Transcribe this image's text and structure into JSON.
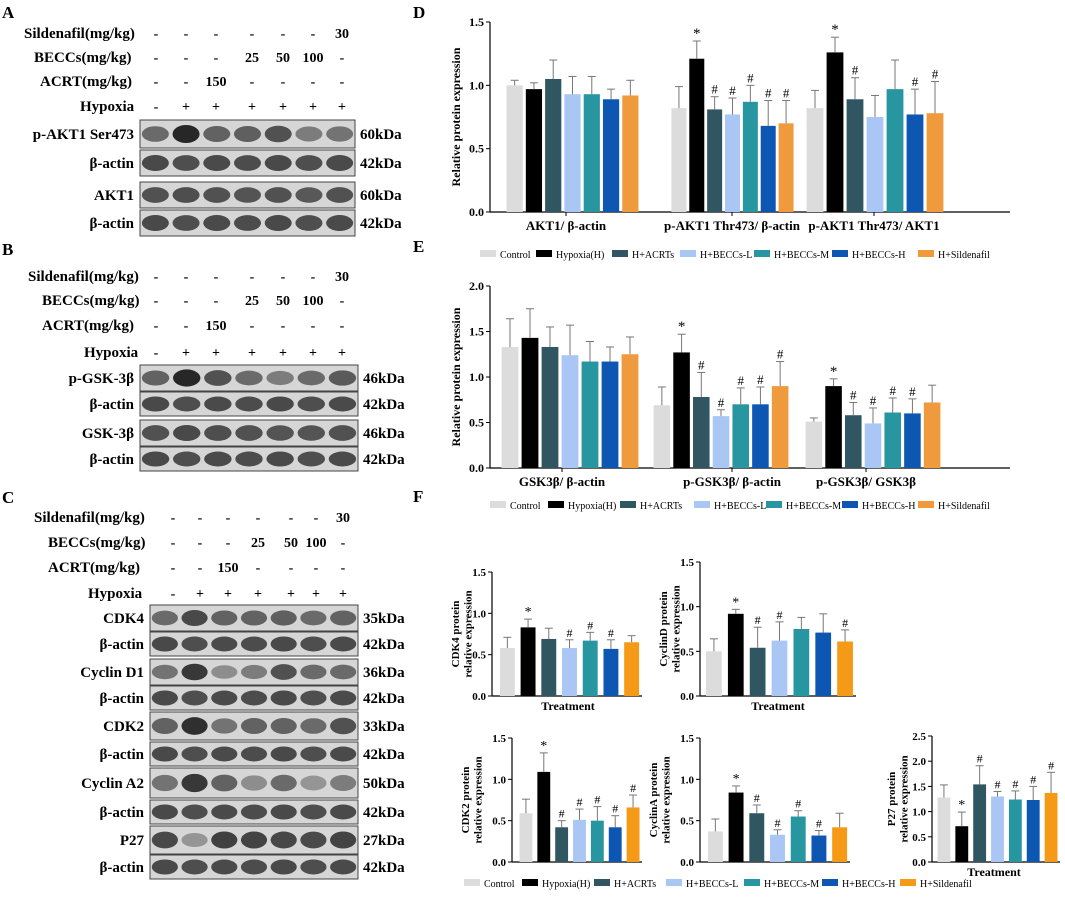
{
  "colors": {
    "Control": "#dcdcdc",
    "Hypoxia(H)": "#000000",
    "H+ACRTs": "#2f5661",
    "H+BECCs-L": "#a9c6f4",
    "H+BECCs-M": "#2896a0",
    "H+BECCs-H": "#0d57b3",
    "H+Sildenafil": "#ef9a3c",
    "Control_F": "#dcdcdc",
    "H+Sildenafil_F": "#f59a16"
  },
  "panels": [
    {
      "letter": "A"
    },
    {
      "letter": "B"
    },
    {
      "letter": "C"
    },
    {
      "letter": "D"
    },
    {
      "letter": "E"
    },
    {
      "letter": "F"
    }
  ],
  "blots": [
    {
      "conditions": [
        {
          "label": "Sildenafil(mg/kg)",
          "values": [
            "-",
            "-",
            "-",
            "-",
            "-",
            "-",
            "30"
          ]
        },
        {
          "label": "BECCs(mg/kg)",
          "values": [
            "-",
            "-",
            "-",
            "25",
            "50",
            "100",
            "-"
          ]
        },
        {
          "label": "ACRT(mg/kg)",
          "values": [
            "-",
            "-",
            "150",
            "-",
            "-",
            "-",
            "-"
          ]
        },
        {
          "label": "Hypoxia",
          "values": [
            "-",
            "+",
            "+",
            "+",
            "+",
            "+",
            "+"
          ]
        }
      ],
      "rows": [
        {
          "protein": "p-AKT1 Ser473",
          "size": "60kDa"
        },
        {
          "protein": "β-actin",
          "size": "42kDa"
        },
        {
          "protein": "AKT1",
          "size": "60kDa"
        },
        {
          "protein": "β-actin",
          "size": "42kDa"
        }
      ]
    },
    {
      "conditions": [
        {
          "label": "Sildenafil(mg/kg)",
          "values": [
            "-",
            "-",
            "-",
            "-",
            "-",
            "-",
            "30"
          ]
        },
        {
          "label": "BECCs(mg/kg)",
          "values": [
            "-",
            "-",
            "-",
            "25",
            "50",
            "100",
            "-"
          ]
        },
        {
          "label": "ACRT(mg/kg)",
          "values": [
            "-",
            "-",
            "150",
            "-",
            "-",
            "-",
            "-"
          ]
        },
        {
          "label": "Hypoxia",
          "values": [
            "-",
            "+",
            "+",
            "+",
            "+",
            "+",
            "+"
          ]
        }
      ],
      "rows": [
        {
          "protein": "p-GSK-3β",
          "size": "46kDa"
        },
        {
          "protein": "β-actin",
          "size": "42kDa"
        },
        {
          "protein": "GSK-3β",
          "size": "46kDa"
        },
        {
          "protein": "β-actin",
          "size": "42kDa"
        }
      ]
    },
    {
      "conditions": [
        {
          "label": "Sildenafil(mg/kg)",
          "values": [
            "-",
            "-",
            "-",
            "-",
            "-",
            "-",
            "30"
          ]
        },
        {
          "label": "BECCs(mg/kg)",
          "values": [
            "-",
            "-",
            "-",
            "25",
            "50",
            "100",
            "-"
          ]
        },
        {
          "label": "ACRT(mg/kg)",
          "values": [
            "-",
            "-",
            "150",
            "-",
            "-",
            "-",
            "-"
          ]
        },
        {
          "label": "Hypoxia",
          "values": [
            "-",
            "+",
            "+",
            "+",
            "+",
            "+",
            "+"
          ]
        }
      ],
      "rows": [
        {
          "protein": "CDK4",
          "size": "35kDa"
        },
        {
          "protein": "β-actin",
          "size": "42kDa"
        },
        {
          "protein": "Cyclin D1",
          "size": "36kDa"
        },
        {
          "protein": "β-actin",
          "size": "42kDa"
        },
        {
          "protein": "CDK2",
          "size": "33kDa"
        },
        {
          "protein": "β-actin",
          "size": "42kDa"
        },
        {
          "protein": "Cyclin A2",
          "size": "50kDa"
        },
        {
          "protein": "β-actin",
          "size": "42kDa"
        },
        {
          "protein": "P27",
          "size": "27kDa"
        },
        {
          "protein": "β-actin",
          "size": "42kDa"
        }
      ]
    }
  ],
  "legend": {
    "entries": [
      "Control",
      "Hypoxia(H)",
      "H+ACRTs",
      "H+BECCs-L",
      "H+BECCs-M",
      "H+BECCs-H",
      "H+Sildenafil"
    ]
  },
  "chart_data": [
    {
      "panel": "D",
      "type": "bar",
      "ylabel": "Relative protein expression",
      "ylim": [
        0,
        1.5
      ],
      "yticks": [
        "0.0",
        "0.5",
        "1.0",
        "1.5"
      ],
      "categories": [
        "AKT1/ β-actin",
        "p-AKT1 Thr473/ β-actin",
        "p-AKT1 Thr473/ AKT1"
      ],
      "series": [
        {
          "name": "Control",
          "values": [
            1.0,
            0.82,
            0.82
          ],
          "errors": [
            0.04,
            0.17,
            0.14
          ]
        },
        {
          "name": "Hypoxia(H)",
          "values": [
            0.97,
            1.21,
            1.26
          ],
          "errors": [
            0.05,
            0.14,
            0.12
          ]
        },
        {
          "name": "H+ACRTs",
          "values": [
            1.05,
            0.81,
            0.89
          ],
          "errors": [
            0.15,
            0.1,
            0.17
          ]
        },
        {
          "name": "H+BECCs-L",
          "values": [
            0.93,
            0.77,
            0.75
          ],
          "errors": [
            0.14,
            0.13,
            0.17
          ]
        },
        {
          "name": "H+BECCs-M",
          "values": [
            0.93,
            0.87,
            0.97
          ],
          "errors": [
            0.14,
            0.13,
            0.23
          ]
        },
        {
          "name": "H+BECCs-H",
          "values": [
            0.89,
            0.68,
            0.77
          ],
          "errors": [
            0.08,
            0.2,
            0.2
          ]
        },
        {
          "name": "H+Sildenafil",
          "values": [
            0.92,
            0.7,
            0.78
          ],
          "errors": [
            0.12,
            0.18,
            0.25
          ]
        }
      ],
      "marks": [
        [
          "",
          "",
          ""
        ],
        [
          "",
          "★",
          "★"
        ],
        [
          "",
          "#",
          "#"
        ],
        [
          "",
          "#",
          ""
        ],
        [
          "",
          "#",
          ""
        ],
        [
          "",
          "#",
          "#"
        ],
        [
          "",
          "#",
          "#"
        ]
      ]
    },
    {
      "panel": "E",
      "type": "bar",
      "ylabel": "Relative protein expression",
      "ylim": [
        0,
        2.0
      ],
      "yticks": [
        "0.0",
        "0.5",
        "1.0",
        "1.5",
        "2.0"
      ],
      "categories": [
        "GSK3β/ β-actin",
        "p-GSK3β/ β-actin",
        "p-GSK3β/ GSK3β"
      ],
      "series": [
        {
          "name": "Control",
          "values": [
            1.33,
            0.69,
            0.51
          ],
          "errors": [
            0.31,
            0.2,
            0.04
          ]
        },
        {
          "name": "Hypoxia(H)",
          "values": [
            1.43,
            1.27,
            0.9
          ],
          "errors": [
            0.32,
            0.2,
            0.08
          ]
        },
        {
          "name": "H+ACRTs",
          "values": [
            1.33,
            0.78,
            0.58
          ],
          "errors": [
            0.22,
            0.27,
            0.14
          ]
        },
        {
          "name": "H+BECCs-L",
          "values": [
            1.24,
            0.57,
            0.49
          ],
          "errors": [
            0.33,
            0.07,
            0.17
          ]
        },
        {
          "name": "H+BECCs-M",
          "values": [
            1.17,
            0.7,
            0.61
          ],
          "errors": [
            0.22,
            0.18,
            0.16
          ]
        },
        {
          "name": "H+BECCs-H",
          "values": [
            1.17,
            0.7,
            0.6
          ],
          "errors": [
            0.16,
            0.19,
            0.16
          ]
        },
        {
          "name": "H+Sildenafil",
          "values": [
            1.25,
            0.9,
            0.72
          ],
          "errors": [
            0.19,
            0.27,
            0.19
          ]
        }
      ],
      "marks": [
        [
          "",
          "",
          ""
        ],
        [
          "",
          "★",
          "★"
        ],
        [
          "",
          "#",
          "#"
        ],
        [
          "",
          "#",
          "#"
        ],
        [
          "",
          "#",
          "#"
        ],
        [
          "",
          "#",
          "#"
        ],
        [
          "",
          "#",
          ""
        ]
      ]
    },
    {
      "panel": "F1",
      "type": "bar",
      "ylabel": "CDK4 protein relative expression",
      "xlabel": "Treatment",
      "ylim": [
        0,
        1.5
      ],
      "yticks": [
        "0.0",
        "0.5",
        "1.0",
        "1.5"
      ],
      "values": [
        0.58,
        0.83,
        0.69,
        0.58,
        0.67,
        0.57,
        0.65
      ],
      "errors": [
        0.13,
        0.1,
        0.13,
        0.1,
        0.1,
        0.11,
        0.08
      ],
      "marks": [
        "",
        "★",
        "",
        "#",
        "#",
        "#",
        ""
      ]
    },
    {
      "panel": "F2",
      "type": "bar",
      "ylabel": "CyclinD protein relative expression",
      "xlabel": "Treatment",
      "ylim": [
        0,
        1.5
      ],
      "yticks": [
        "0.0",
        "0.5",
        "1.0",
        "1.5"
      ],
      "values": [
        0.5,
        0.92,
        0.54,
        0.62,
        0.75,
        0.71,
        0.61
      ],
      "errors": [
        0.14,
        0.05,
        0.23,
        0.21,
        0.13,
        0.21,
        0.13
      ],
      "marks": [
        "",
        "★",
        "#",
        "#",
        "",
        "",
        "#"
      ]
    },
    {
      "panel": "F3",
      "type": "bar",
      "ylabel": "CDK2 protein relative expression",
      "xlabel": "",
      "ylim": [
        0,
        1.5
      ],
      "yticks": [
        "0.0",
        "0.5",
        "1.0",
        "1.5"
      ],
      "values": [
        0.59,
        1.09,
        0.42,
        0.51,
        0.5,
        0.42,
        0.66
      ],
      "errors": [
        0.17,
        0.23,
        0.08,
        0.13,
        0.17,
        0.14,
        0.15
      ],
      "marks": [
        "",
        "★",
        "#",
        "#",
        "#",
        "#",
        "#"
      ]
    },
    {
      "panel": "F4",
      "type": "bar",
      "ylabel": "CyclinA protein relative expression",
      "xlabel": "",
      "ylim": [
        0,
        1.5
      ],
      "yticks": [
        "0.0",
        "0.5",
        "1.0",
        "1.5"
      ],
      "values": [
        0.37,
        0.84,
        0.59,
        0.33,
        0.55,
        0.32,
        0.42
      ],
      "errors": [
        0.15,
        0.08,
        0.1,
        0.06,
        0.07,
        0.06,
        0.17
      ],
      "marks": [
        "",
        "★",
        "#",
        "#",
        "#",
        "#",
        ""
      ]
    },
    {
      "panel": "F5",
      "type": "bar",
      "ylabel": "P27 protein relative expression",
      "xlabel": "Treatment",
      "ylim": [
        0,
        2.5
      ],
      "yticks": [
        "0.0",
        "0.5",
        "1.0",
        "1.5",
        "2.0",
        "2.5"
      ],
      "values": [
        1.28,
        0.71,
        1.54,
        1.3,
        1.24,
        1.23,
        1.37
      ],
      "errors": [
        0.25,
        0.28,
        0.37,
        0.1,
        0.17,
        0.27,
        0.41
      ],
      "marks": [
        "",
        "★",
        "#",
        "#",
        "#",
        "#",
        "#"
      ]
    }
  ]
}
